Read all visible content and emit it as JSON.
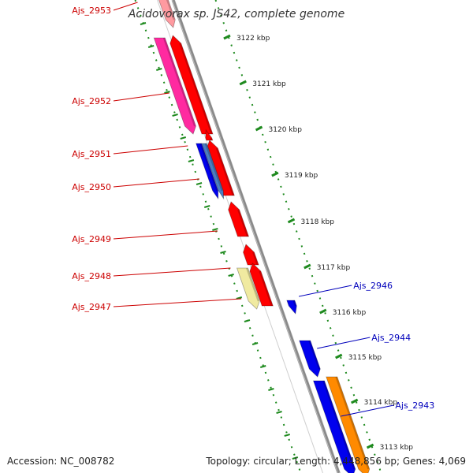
{
  "title": "Acidovorax sp. JS42, complete genome",
  "accession_text": "Accession: NC_008782",
  "summary_text": "Topology: circular; Length: 4,448,856 bp; Genes: 4,069",
  "colors": {
    "forward_gene": "#ff0000",
    "reverse_gene": "#0000ee",
    "pink_gene": "#ff2aa0",
    "steelblue_gene": "#4a7fc4",
    "orange_gene": "#ff8a00",
    "pale_gene": "#f0eaa0",
    "backbone": "#8a8a8a",
    "tick": "#1e8a1e",
    "left_label": "#cc0000",
    "right_label": "#0000bb"
  },
  "ticks": [
    "3122 kbp",
    "3121 kbp",
    "3120 kbp",
    "3119 kbp",
    "3118 kbp",
    "3117 kbp",
    "3116 kbp",
    "3115 kbp",
    "3114 kbp",
    "3113 kbp"
  ],
  "left_labels": [
    "Ajs_2953",
    "Ajs_2952",
    "Ajs_2951",
    "Ajs_2950",
    "Ajs_2949",
    "Ajs_2948",
    "Ajs_2947"
  ],
  "right_labels": [
    "Ajs_2946",
    "Ajs_2944",
    "Ajs_2943"
  ]
}
